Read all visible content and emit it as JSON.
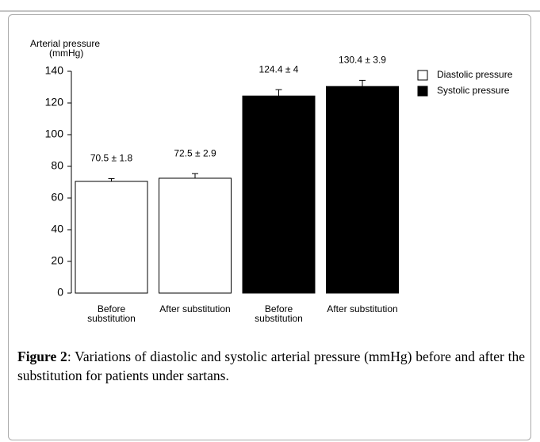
{
  "chart_data": {
    "type": "bar",
    "ylabel": [
      "Arterial pressure",
      "(mmHg)"
    ],
    "categories": [
      "Before substitution",
      "After substitution",
      "Before substitution",
      "After substitution"
    ],
    "series": [
      {
        "name": "Diastolic pressure",
        "color": "#ffffff",
        "values": [
          70.5,
          72.5,
          null,
          null
        ],
        "errors": [
          1.8,
          2.9,
          null,
          null
        ],
        "value_labels": [
          "70.5 ± 1.8",
          "72.5 ± 2.9",
          null,
          null
        ]
      },
      {
        "name": "Systolic pressure",
        "color": "#000000",
        "values": [
          null,
          null,
          124.4,
          130.4
        ],
        "errors": [
          null,
          null,
          4,
          3.9
        ],
        "value_labels": [
          null,
          null,
          "124.4 ± 4",
          "130.4 ± 3.9"
        ]
      }
    ],
    "ylim": [
      0,
      140
    ],
    "yticks": [
      0,
      20,
      40,
      60,
      80,
      100,
      120,
      140
    ],
    "legend": "top-right"
  },
  "caption": {
    "label": "Figure 2",
    "text": ": Variations of diastolic and systolic arterial pressure (mmHg) before and after the substitution for patients under sartans."
  }
}
